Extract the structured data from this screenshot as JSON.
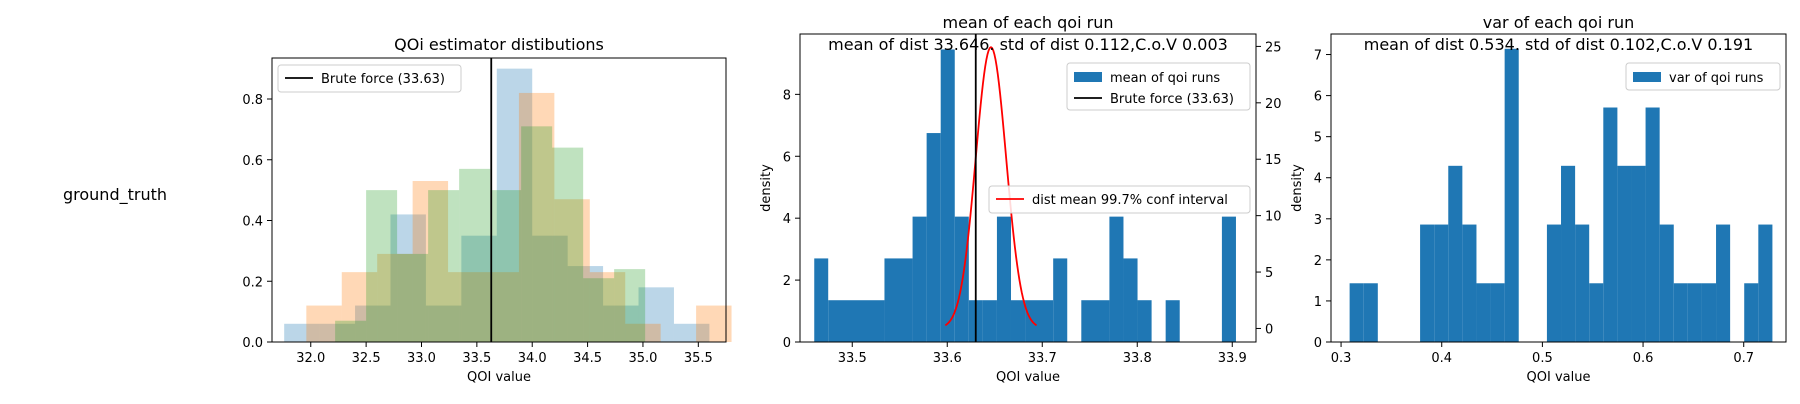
{
  "row_label": "ground_truth",
  "colors": {
    "blue": "#1f77b4",
    "orange": "#ff7f0e",
    "green": "#2ca02c",
    "red": "#ff0000",
    "black": "#000000"
  },
  "chart_data": [
    {
      "type": "histogram",
      "title": "QOi estimator distibutions",
      "xlabel": "QOI value",
      "ylabel": "",
      "xlim": [
        31.65,
        35.75
      ],
      "ylim": [
        0,
        0.935
      ],
      "xticks": [
        32.0,
        32.5,
        33.0,
        33.5,
        34.0,
        34.5,
        35.0,
        35.5
      ],
      "xtick_labels": [
        "32.0",
        "32.5",
        "33.0",
        "33.5",
        "34.0",
        "34.5",
        "35.0",
        "35.5"
      ],
      "yticks": [
        0.0,
        0.2,
        0.4,
        0.6,
        0.8
      ],
      "ytick_labels": [
        "0.0",
        "0.2",
        "0.4",
        "0.6",
        "0.8"
      ],
      "legend": {
        "position": "top-left",
        "entries": [
          "Brute force (33.63)"
        ]
      },
      "vline": {
        "x": 33.63,
        "label": "Brute force (33.63)"
      },
      "series": [
        {
          "color": "#1f77b4",
          "alpha": 0.3,
          "bins": [
            [
              31.76,
              32.08,
              0.06
            ],
            [
              32.08,
              32.4,
              0.06
            ],
            [
              32.4,
              32.72,
              0.12
            ],
            [
              32.72,
              33.04,
              0.42
            ],
            [
              33.04,
              33.36,
              0.12
            ],
            [
              33.36,
              33.68,
              0.35
            ],
            [
              33.68,
              34.0,
              0.9
            ],
            [
              34.0,
              34.32,
              0.35
            ],
            [
              34.32,
              34.64,
              0.25
            ],
            [
              34.64,
              34.96,
              0.12
            ],
            [
              34.96,
              35.28,
              0.18
            ],
            [
              35.28,
              35.6,
              0.06
            ]
          ]
        },
        {
          "color": "#ff7f0e",
          "alpha": 0.3,
          "bins": [
            [
              31.96,
              32.28,
              0.12
            ],
            [
              32.28,
              32.6,
              0.23
            ],
            [
              32.6,
              32.92,
              0.29
            ],
            [
              32.92,
              33.24,
              0.53
            ],
            [
              33.24,
              33.56,
              0.23
            ],
            [
              33.56,
              33.88,
              0.23
            ],
            [
              33.88,
              34.2,
              0.82
            ],
            [
              34.2,
              34.52,
              0.47
            ],
            [
              34.52,
              34.84,
              0.23
            ],
            [
              34.84,
              35.16,
              0.06
            ],
            [
              35.16,
              35.48,
              0.0
            ],
            [
              35.48,
              35.8,
              0.12
            ]
          ]
        },
        {
          "color": "#2ca02c",
          "alpha": 0.3,
          "bins": [
            [
              32.22,
              32.5,
              0.07
            ],
            [
              32.5,
              32.78,
              0.5
            ],
            [
              32.78,
              33.06,
              0.29
            ],
            [
              33.06,
              33.34,
              0.5
            ],
            [
              33.34,
              33.62,
              0.57
            ],
            [
              33.62,
              33.9,
              0.5
            ],
            [
              33.9,
              34.18,
              0.71
            ],
            [
              34.18,
              34.46,
              0.64
            ],
            [
              34.46,
              34.74,
              0.21
            ],
            [
              34.74,
              35.02,
              0.24
            ]
          ]
        }
      ]
    },
    {
      "type": "histogram",
      "title": "mean of each qoi run",
      "subtitle": "mean of dist 33.646. std of dist 0.112,C.o.V 0.003",
      "xlabel": "QOI value",
      "ylabel": "density",
      "xlim": [
        33.445,
        33.925
      ],
      "ylim": [
        0,
        9.95
      ],
      "xticks": [
        33.5,
        33.6,
        33.7,
        33.8,
        33.9
      ],
      "xtick_labels": [
        "33.5",
        "33.6",
        "33.7",
        "33.8",
        "33.9"
      ],
      "yticks": [
        0,
        2,
        4,
        6,
        8
      ],
      "ytick_labels": [
        "0",
        "2",
        "4",
        "6",
        "8"
      ],
      "y2lim": [
        -1.2,
        26.1
      ],
      "y2ticks": [
        0,
        5,
        10,
        15,
        20,
        25
      ],
      "y2tick_labels": [
        "0",
        "5",
        "10",
        "15",
        "20",
        "25"
      ],
      "legend": {
        "position": "top-right",
        "entries": [
          "mean of qoi runs",
          "Brute force (33.63)"
        ]
      },
      "legend2": {
        "position": "center-right",
        "entries": [
          "dist mean 99.7% conf interval"
        ]
      },
      "vline": {
        "x": 33.63,
        "label": "Brute force (33.63)"
      },
      "series": [
        {
          "name": "mean of qoi runs",
          "color": "#1f77b4",
          "bins": [
            [
              33.46,
              33.4747,
              2.7
            ],
            [
              33.4747,
              33.5339,
              1.35
            ],
            [
              33.5339,
              33.5635,
              2.7
            ],
            [
              33.5635,
              33.5783,
              4.05
            ],
            [
              33.5783,
              33.5931,
              6.75
            ],
            [
              33.5931,
              33.6079,
              9.45
            ],
            [
              33.6079,
              33.6227,
              4.05
            ],
            [
              33.6227,
              33.6375,
              1.35
            ],
            [
              33.6375,
              33.6523,
              1.35
            ],
            [
              33.6523,
              33.6671,
              4.05
            ],
            [
              33.6671,
              33.6819,
              1.35
            ],
            [
              33.6819,
              33.7115,
              1.35
            ],
            [
              33.7115,
              33.7263,
              2.7
            ],
            [
              33.7411,
              33.7707,
              1.35
            ],
            [
              33.7707,
              33.7855,
              4.05
            ],
            [
              33.7855,
              33.8003,
              2.7
            ],
            [
              33.8003,
              33.8151,
              1.35
            ],
            [
              33.8299,
              33.8447,
              1.35
            ],
            [
              33.8891,
              33.9039,
              4.05
            ]
          ]
        }
      ],
      "curve": {
        "name": "dist mean 99.7% conf interval",
        "color": "#ff0000",
        "mean": 33.646,
        "sd": 0.016,
        "x_from": 33.598,
        "x_to": 33.694,
        "axis": "right"
      }
    },
    {
      "type": "histogram",
      "title": "var of each qoi run",
      "subtitle": "mean of dist 0.534. std of dist 0.102,C.o.V 0.191",
      "xlabel": "QOI value",
      "ylabel": "density",
      "xlim": [
        0.29,
        0.742
      ],
      "ylim": [
        0,
        7.5
      ],
      "xticks": [
        0.3,
        0.4,
        0.5,
        0.6,
        0.7
      ],
      "xtick_labels": [
        "0.3",
        "0.4",
        "0.5",
        "0.6",
        "0.7"
      ],
      "yticks": [
        0,
        1,
        2,
        3,
        4,
        5,
        6,
        7
      ],
      "ytick_labels": [
        "0",
        "1",
        "2",
        "3",
        "4",
        "5",
        "6",
        "7"
      ],
      "legend": {
        "position": "top-right",
        "entries": [
          "var of qoi runs"
        ]
      },
      "series": [
        {
          "name": "var of qoi runs",
          "color": "#1f77b4",
          "bins": [
            [
              0.3085,
              0.3225,
              1.43
            ],
            [
              0.3225,
              0.3365,
              1.43
            ],
            [
              0.3785,
              0.3925,
              2.86
            ],
            [
              0.3925,
              0.4065,
              2.86
            ],
            [
              0.4065,
              0.4205,
              4.29
            ],
            [
              0.4205,
              0.4345,
              2.86
            ],
            [
              0.4345,
              0.4485,
              1.43
            ],
            [
              0.4485,
              0.4625,
              1.43
            ],
            [
              0.4625,
              0.4765,
              7.14
            ],
            [
              0.5045,
              0.5185,
              2.86
            ],
            [
              0.5185,
              0.5325,
              4.29
            ],
            [
              0.5325,
              0.5465,
              2.86
            ],
            [
              0.5465,
              0.5605,
              1.43
            ],
            [
              0.5605,
              0.5745,
              5.71
            ],
            [
              0.5745,
              0.5885,
              4.29
            ],
            [
              0.5885,
              0.6025,
              4.29
            ],
            [
              0.6025,
              0.6165,
              5.71
            ],
            [
              0.6165,
              0.6305,
              2.86
            ],
            [
              0.6305,
              0.6445,
              1.43
            ],
            [
              0.6445,
              0.6585,
              1.43
            ],
            [
              0.6585,
              0.6725,
              1.43
            ],
            [
              0.6725,
              0.6865,
              2.86
            ],
            [
              0.7005,
              0.7145,
              1.43
            ],
            [
              0.7145,
              0.7285,
              2.86
            ]
          ]
        }
      ]
    }
  ]
}
